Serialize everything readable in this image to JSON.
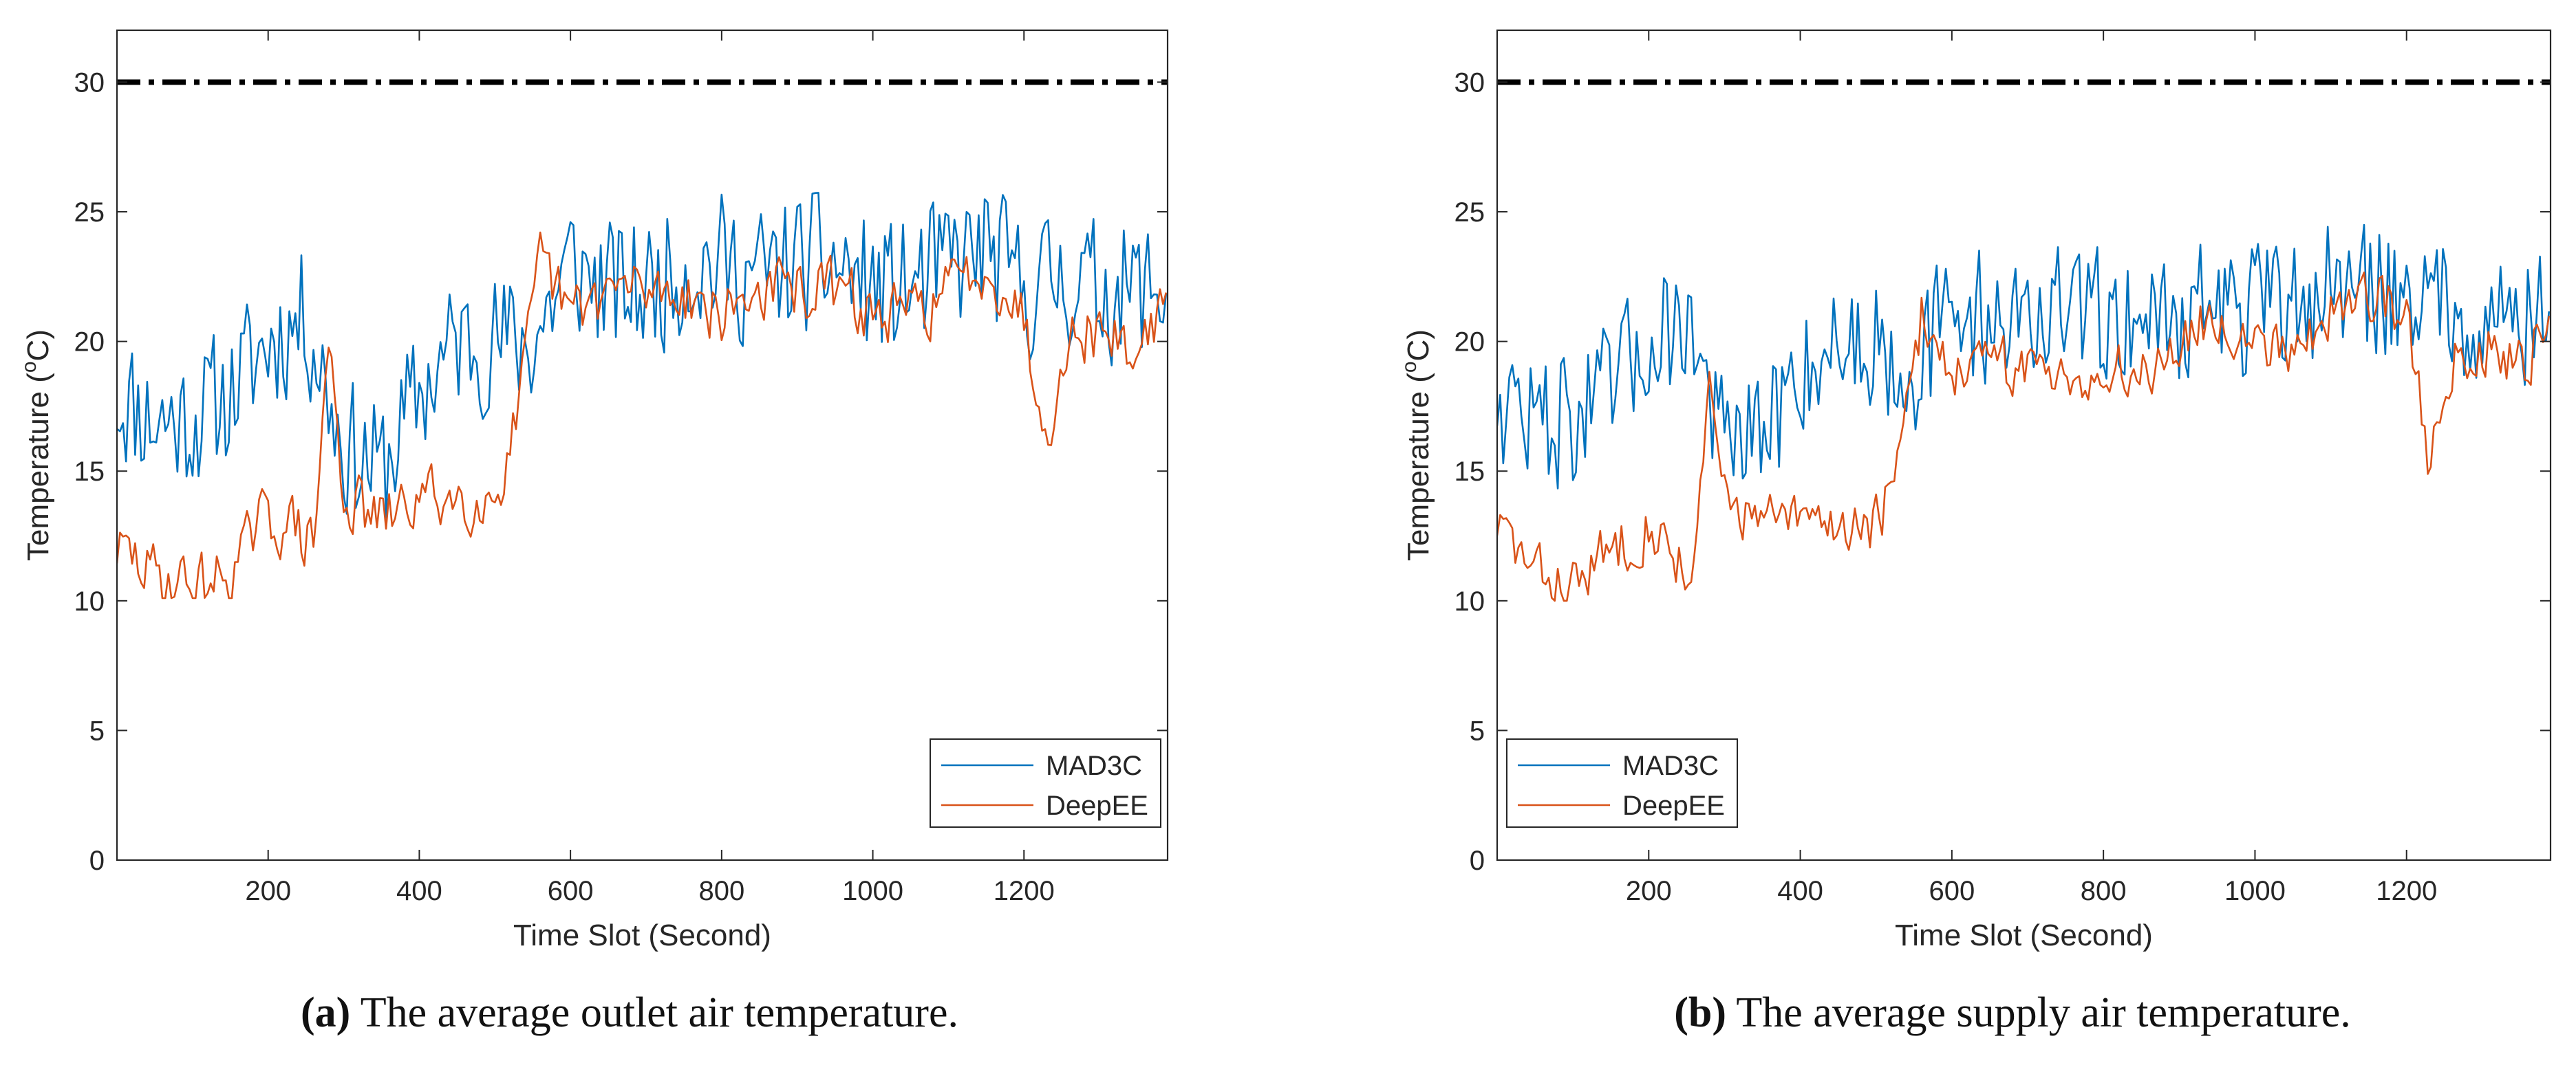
{
  "colors": {
    "mad3c": "#0072BD",
    "deepee": "#D95319",
    "threshold": "#000000",
    "axis": "#262626",
    "background": "#FFFFFF"
  },
  "chart_data": [
    {
      "id": "a",
      "type": "line",
      "xlabel": "Time Slot (Second)",
      "ylabel_main": "Temperature (",
      "ylabel_sup": "o",
      "ylabel_tail": "C)",
      "xlim": [
        0,
        1390
      ],
      "ylim": [
        0,
        32
      ],
      "xticks": [
        200,
        400,
        600,
        800,
        1000,
        1200
      ],
      "yticks": [
        0,
        5,
        10,
        15,
        20,
        25,
        30
      ],
      "legend_position": "bottom-right",
      "threshold": {
        "value": 30,
        "style": "dash-dot"
      },
      "caption": {
        "letter": "(a)",
        "text": "The average outlet air temperature."
      },
      "series": [
        {
          "name": "MAD3C",
          "color_key": "mad3c",
          "seed": 11,
          "spacing": 4,
          "noise": 3.1,
          "smooth": 0.15,
          "min": 10,
          "max": 28.2,
          "anchors": [
            [
              0,
              18
            ],
            [
              50,
              17
            ],
            [
              100,
              17
            ],
            [
              150,
              18
            ],
            [
              200,
              20
            ],
            [
              250,
              21
            ],
            [
              300,
              16
            ],
            [
              350,
              15
            ],
            [
              400,
              18
            ],
            [
              450,
              20
            ],
            [
              500,
              20
            ],
            [
              550,
              20
            ],
            [
              600,
              23
            ],
            [
              650,
              22
            ],
            [
              700,
              22
            ],
            [
              750,
              23
            ],
            [
              800,
              23
            ],
            [
              850,
              22.5
            ],
            [
              900,
              23
            ],
            [
              950,
              23
            ],
            [
              1000,
              22
            ],
            [
              1050,
              22
            ],
            [
              1100,
              23
            ],
            [
              1150,
              23.5
            ],
            [
              1200,
              22
            ],
            [
              1250,
              22.5
            ],
            [
              1300,
              22
            ],
            [
              1390,
              22
            ]
          ]
        },
        {
          "name": "DeepEE",
          "color_key": "deepee",
          "seed": 29,
          "spacing": 4,
          "noise": 1.7,
          "smooth": 0.35,
          "min": 10.1,
          "max": 26,
          "anchors": [
            [
              0,
              12
            ],
            [
              50,
              11
            ],
            [
              100,
              10.6
            ],
            [
              150,
              11
            ],
            [
              190,
              13
            ],
            [
              230,
              13
            ],
            [
              260,
              12
            ],
            [
              280,
              20
            ],
            [
              300,
              14
            ],
            [
              350,
              13
            ],
            [
              400,
              14
            ],
            [
              450,
              14
            ],
            [
              500,
              14
            ],
            [
              530,
              17
            ],
            [
              560,
              23
            ],
            [
              600,
              21
            ],
            [
              650,
              22
            ],
            [
              700,
              22
            ],
            [
              750,
              22
            ],
            [
              800,
              21
            ],
            [
              850,
              22
            ],
            [
              900,
              22
            ],
            [
              950,
              22
            ],
            [
              1000,
              21
            ],
            [
              1050,
              21
            ],
            [
              1100,
              22
            ],
            [
              1150,
              23
            ],
            [
              1200,
              21
            ],
            [
              1230,
              16
            ],
            [
              1250,
              20
            ],
            [
              1300,
              20.5
            ],
            [
              1350,
              19.5
            ],
            [
              1390,
              22
            ]
          ]
        }
      ]
    },
    {
      "id": "b",
      "type": "line",
      "xlabel": "Time Slot (Second)",
      "ylabel_main": "Temperature (",
      "ylabel_sup": "o",
      "ylabel_tail": "C)",
      "xlim": [
        0,
        1390
      ],
      "ylim": [
        0,
        32
      ],
      "xticks": [
        200,
        400,
        600,
        800,
        1000,
        1200
      ],
      "yticks": [
        0,
        5,
        10,
        15,
        20,
        25,
        30
      ],
      "legend_position": "bottom-left",
      "threshold": {
        "value": 30,
        "style": "dash-dot"
      },
      "caption": {
        "letter": "(b)",
        "text": "The average supply air temperature."
      },
      "series": [
        {
          "name": "MAD3C",
          "color_key": "mad3c",
          "seed": 47,
          "spacing": 4,
          "noise": 3.0,
          "smooth": 0.15,
          "min": 10,
          "max": 28.2,
          "anchors": [
            [
              0,
              18
            ],
            [
              50,
              17
            ],
            [
              100,
              17
            ],
            [
              150,
              18
            ],
            [
              200,
              20
            ],
            [
              250,
              21
            ],
            [
              300,
              16
            ],
            [
              350,
              16
            ],
            [
              400,
              19
            ],
            [
              450,
              20
            ],
            [
              500,
              20
            ],
            [
              550,
              19
            ],
            [
              600,
              21
            ],
            [
              650,
              21
            ],
            [
              700,
              21
            ],
            [
              750,
              21
            ],
            [
              800,
              21
            ],
            [
              850,
              21
            ],
            [
              900,
              21
            ],
            [
              950,
              21.5
            ],
            [
              1000,
              21
            ],
            [
              1050,
              21.5
            ],
            [
              1100,
              22
            ],
            [
              1150,
              22
            ],
            [
              1200,
              22
            ],
            [
              1250,
              21.5
            ],
            [
              1300,
              21
            ],
            [
              1390,
              21
            ]
          ]
        },
        {
          "name": "DeepEE",
          "color_key": "deepee",
          "seed": 83,
          "spacing": 4,
          "noise": 1.6,
          "smooth": 0.35,
          "min": 10,
          "max": 25.2,
          "anchors": [
            [
              0,
              13
            ],
            [
              50,
              11
            ],
            [
              100,
              10.5
            ],
            [
              150,
              12
            ],
            [
              200,
              13
            ],
            [
              230,
              12
            ],
            [
              260,
              11
            ],
            [
              280,
              18
            ],
            [
              300,
              14
            ],
            [
              350,
              13
            ],
            [
              400,
              13
            ],
            [
              450,
              13
            ],
            [
              500,
              13
            ],
            [
              530,
              15
            ],
            [
              560,
              21
            ],
            [
              600,
              19
            ],
            [
              650,
              19
            ],
            [
              700,
              19
            ],
            [
              750,
              19
            ],
            [
              800,
              18.5
            ],
            [
              850,
              19
            ],
            [
              900,
              20
            ],
            [
              950,
              21
            ],
            [
              1000,
              20
            ],
            [
              1050,
              20
            ],
            [
              1100,
              21
            ],
            [
              1150,
              22
            ],
            [
              1200,
              21
            ],
            [
              1230,
              15
            ],
            [
              1250,
              19
            ],
            [
              1300,
              20
            ],
            [
              1350,
              19
            ],
            [
              1390,
              21
            ]
          ]
        }
      ]
    }
  ]
}
